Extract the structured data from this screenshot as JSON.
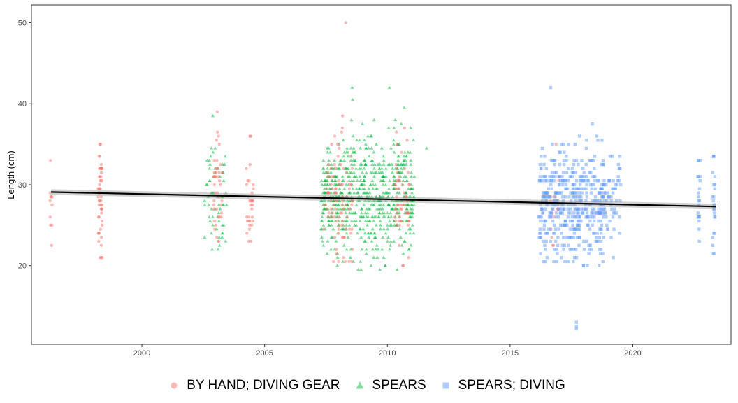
{
  "chart_data": {
    "type": "scatter",
    "title": "",
    "xlabel": "",
    "ylabel": "Length (cm)",
    "xlim": [
      1995.5,
      2024.0
    ],
    "ylim": [
      10.3,
      52.2
    ],
    "x_ticks": [
      2000,
      2005,
      2010,
      2015,
      2020
    ],
    "y_ticks": [
      20,
      30,
      40,
      50
    ],
    "grid": false,
    "legend_position": "bottom",
    "colors": {
      "BY HAND; DIVING GEAR": "#F8766D",
      "SPEARS": "#00BA38",
      "SPEARS; DIVING": "#619CFF",
      "trend": "#000000"
    },
    "trend_line": {
      "x": [
        1996.3,
        2023.4
      ],
      "y": [
        29.1,
        27.3
      ],
      "band": 0.35
    },
    "series": [
      {
        "name": "BY HAND; DIVING GEAR",
        "marker": "circle",
        "clusters": [
          {
            "x": 1996.3,
            "spread": 0.05,
            "n": 9,
            "ymin": 22.5,
            "ymax": 33.0,
            "mean": 28.5,
            "sd": 3.2
          },
          {
            "x": 1998.3,
            "spread": 0.08,
            "n": 50,
            "ymin": 21.0,
            "ymax": 35.0,
            "mean": 28.0,
            "sd": 3.5
          },
          {
            "x": 2003.1,
            "spread": 0.18,
            "n": 40,
            "ymin": 23.0,
            "ymax": 39.0,
            "mean": 30.0,
            "sd": 4.0
          },
          {
            "x": 2004.4,
            "spread": 0.15,
            "n": 30,
            "ymin": 23.0,
            "ymax": 36.0,
            "mean": 28.5,
            "sd": 3.5
          },
          {
            "x": 2008.0,
            "spread": 0.6,
            "n": 90,
            "ymin": 20.5,
            "ymax": 38.5,
            "mean": 28.0,
            "sd": 3.8
          },
          {
            "x": 2010.6,
            "spread": 0.3,
            "n": 55,
            "ymin": 20.0,
            "ymax": 37.0,
            "mean": 28.0,
            "sd": 3.6
          },
          {
            "x": 2016.8,
            "spread": 0.2,
            "n": 14,
            "ymin": 22.5,
            "ymax": 35.0,
            "mean": 27.5,
            "sd": 3.0
          }
        ],
        "extra_points": [
          {
            "x": 2008.3,
            "y": 50.0
          }
        ]
      },
      {
        "name": "SPEARS",
        "marker": "triangle",
        "clusters": [
          {
            "x": 2003.0,
            "spread": 0.45,
            "n": 60,
            "ymin": 22.0,
            "ymax": 38.5,
            "mean": 29.0,
            "sd": 3.5
          },
          {
            "x": 2009.2,
            "spread": 1.9,
            "n": 700,
            "ymin": 19.5,
            "ymax": 42.0,
            "mean": 28.5,
            "sd": 3.6
          }
        ],
        "extra_points": [
          {
            "x": 2011.6,
            "y": 34.5
          }
        ]
      },
      {
        "name": "SPEARS; DIVING",
        "marker": "square",
        "clusters": [
          {
            "x": 2016.9,
            "spread": 0.75,
            "n": 240,
            "ymin": 20.5,
            "ymax": 42.0,
            "mean": 27.5,
            "sd": 3.4
          },
          {
            "x": 2018.2,
            "spread": 0.65,
            "n": 200,
            "ymin": 20.0,
            "ymax": 37.5,
            "mean": 27.5,
            "sd": 3.3
          },
          {
            "x": 2019.1,
            "spread": 0.45,
            "n": 70,
            "ymin": 21.0,
            "ymax": 33.5,
            "mean": 28.0,
            "sd": 2.8
          },
          {
            "x": 2022.7,
            "spread": 0.05,
            "n": 18,
            "ymin": 23.0,
            "ymax": 33.0,
            "mean": 28.0,
            "sd": 2.8
          },
          {
            "x": 2023.3,
            "spread": 0.05,
            "n": 22,
            "ymin": 21.5,
            "ymax": 33.5,
            "mean": 28.0,
            "sd": 3.0
          }
        ],
        "extra_points": [
          {
            "x": 2017.7,
            "y": 12.5
          },
          {
            "x": 2017.7,
            "y": 13.0
          },
          {
            "x": 2017.7,
            "y": 12.2
          }
        ]
      }
    ]
  },
  "legend": {
    "items": [
      {
        "label": "BY HAND; DIVING GEAR",
        "color": "#F8766D",
        "marker": "circle"
      },
      {
        "label": "SPEARS",
        "color": "#00BA38",
        "marker": "triangle"
      },
      {
        "label": "SPEARS; DIVING",
        "color": "#619CFF",
        "marker": "square"
      }
    ]
  }
}
